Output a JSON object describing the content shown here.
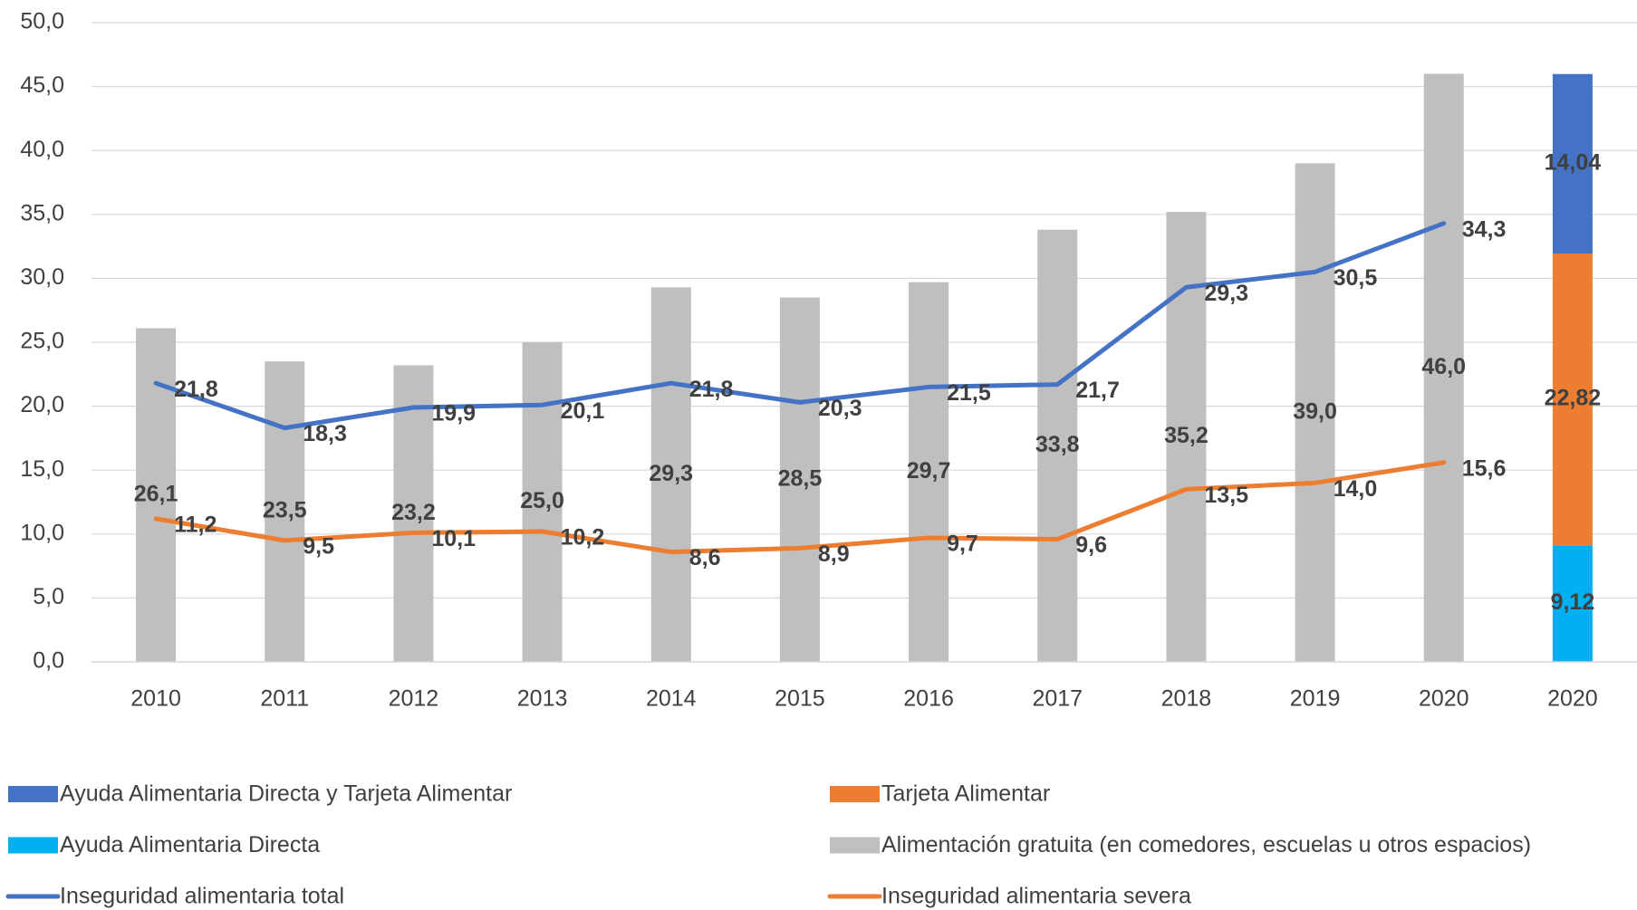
{
  "chart_data": {
    "type": "bar",
    "categories": [
      "2010",
      "2011",
      "2012",
      "2013",
      "2014",
      "2015",
      "2016",
      "2017",
      "2018",
      "2019",
      "2020",
      "2020"
    ],
    "ylim": [
      0,
      50
    ],
    "yticks": [
      {
        "value": 0,
        "label": "0,0"
      },
      {
        "value": 5,
        "label": "5,0"
      },
      {
        "value": 10,
        "label": "10,0"
      },
      {
        "value": 15,
        "label": "15,0"
      },
      {
        "value": 20,
        "label": "20,0"
      },
      {
        "value": 25,
        "label": "25,0"
      },
      {
        "value": 30,
        "label": "30,0"
      },
      {
        "value": 35,
        "label": "35,0"
      },
      {
        "value": 40,
        "label": "40,0"
      },
      {
        "value": 45,
        "label": "45,0"
      },
      {
        "value": 50,
        "label": "50,0"
      }
    ],
    "grid": true,
    "legend": "bottom",
    "series": [
      {
        "name": "Ayuda Alimentaria Directa y Tarjeta Alimentar",
        "type": "bar",
        "color": "#4472c4",
        "values": [
          null,
          null,
          null,
          null,
          null,
          null,
          null,
          null,
          null,
          null,
          null,
          14.04
        ],
        "value_labels": [
          null,
          null,
          null,
          null,
          null,
          null,
          null,
          null,
          null,
          null,
          null,
          "14,04"
        ]
      },
      {
        "name": "Tarjeta Alimentar",
        "type": "bar",
        "color": "#ed7d31",
        "values": [
          null,
          null,
          null,
          null,
          null,
          null,
          null,
          null,
          null,
          null,
          null,
          22.82
        ],
        "value_labels": [
          null,
          null,
          null,
          null,
          null,
          null,
          null,
          null,
          null,
          null,
          null,
          "22,82"
        ]
      },
      {
        "name": "Ayuda Alimentaria Directa",
        "type": "bar",
        "color": "#00b0f0",
        "values": [
          null,
          null,
          null,
          null,
          null,
          null,
          null,
          null,
          null,
          null,
          null,
          9.12
        ],
        "value_labels": [
          null,
          null,
          null,
          null,
          null,
          null,
          null,
          null,
          null,
          null,
          null,
          "9,12"
        ]
      },
      {
        "name": "Alimentación gratuita (en comedores, escuelas u otros espacios)",
        "type": "bar",
        "color": "#bfbfbf",
        "values": [
          26.1,
          23.5,
          23.2,
          25.0,
          29.3,
          28.5,
          29.7,
          33.8,
          35.2,
          39.0,
          46.0,
          null
        ],
        "value_labels": [
          "26,1",
          "23,5",
          "23,2",
          "25,0",
          "29,3",
          "28,5",
          "29,7",
          "33,8",
          "35,2",
          "39,0",
          "46,0",
          null
        ]
      },
      {
        "name": "Inseguridad alimentaria total",
        "type": "line",
        "color": "#4472c4",
        "values": [
          21.8,
          18.3,
          19.9,
          20.1,
          21.8,
          20.3,
          21.5,
          21.7,
          29.3,
          30.5,
          34.3,
          null
        ],
        "value_labels": [
          "21,8",
          "18,3",
          "19,9",
          "20,1",
          "21,8",
          "20,3",
          "21,5",
          "21,7",
          "29,3",
          "30,5",
          "34,3",
          null
        ]
      },
      {
        "name": "Inseguridad alimentaria severa",
        "type": "line",
        "color": "#ed7d31",
        "values": [
          11.2,
          9.5,
          10.1,
          10.2,
          8.6,
          8.9,
          9.7,
          9.6,
          13.5,
          14.0,
          15.6,
          null
        ],
        "value_labels": [
          "11,2",
          "9,5",
          "10,1",
          "10,2",
          "8,6",
          "8,9",
          "9,7",
          "9,6",
          "13,5",
          "14,0",
          "15,6",
          null
        ]
      }
    ]
  }
}
